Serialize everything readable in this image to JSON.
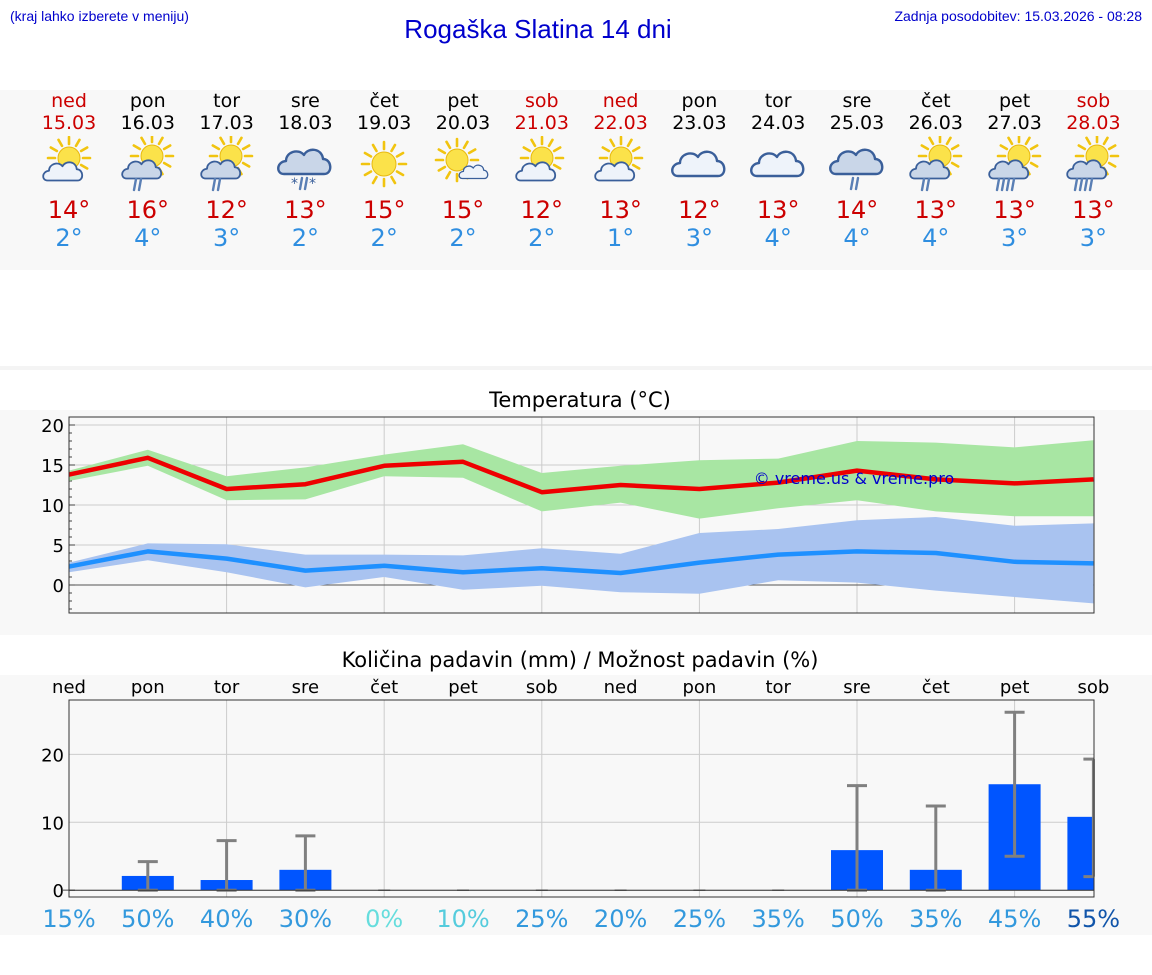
{
  "header": {
    "hint": "(kraj lahko izberete v meniju)",
    "title": "Rogaška Slatina 14 dni",
    "updated": "Zadnja posodobitev: 15.03.2026 - 08:28"
  },
  "days": [
    {
      "name": "ned",
      "date": "15.03",
      "weekend": true,
      "icon": "sun-cloud-icon",
      "tmax": "14°",
      "tmin": "2°"
    },
    {
      "name": "pon",
      "date": "16.03",
      "weekend": false,
      "icon": "sun-cloud-rain-icon",
      "tmax": "16°",
      "tmin": "4°"
    },
    {
      "name": "tor",
      "date": "17.03",
      "weekend": false,
      "icon": "sun-cloud-rain-icon",
      "tmax": "12°",
      "tmin": "3°"
    },
    {
      "name": "sre",
      "date": "18.03",
      "weekend": false,
      "icon": "cloud-rain-snow-icon",
      "tmax": "13°",
      "tmin": "2°"
    },
    {
      "name": "čet",
      "date": "19.03",
      "weekend": false,
      "icon": "sun-icon",
      "tmax": "15°",
      "tmin": "2°"
    },
    {
      "name": "pet",
      "date": "20.03",
      "weekend": false,
      "icon": "sun-small-cloud-icon",
      "tmax": "15°",
      "tmin": "2°"
    },
    {
      "name": "sob",
      "date": "21.03",
      "weekend": true,
      "icon": "sun-cloud-icon",
      "tmax": "12°",
      "tmin": "2°"
    },
    {
      "name": "ned",
      "date": "22.03",
      "weekend": true,
      "icon": "sun-cloud-icon",
      "tmax": "13°",
      "tmin": "1°"
    },
    {
      "name": "pon",
      "date": "23.03",
      "weekend": false,
      "icon": "cloud-icon",
      "tmax": "12°",
      "tmin": "3°"
    },
    {
      "name": "tor",
      "date": "24.03",
      "weekend": false,
      "icon": "cloud-icon",
      "tmax": "13°",
      "tmin": "4°"
    },
    {
      "name": "sre",
      "date": "25.03",
      "weekend": false,
      "icon": "cloud-rain-icon",
      "tmax": "14°",
      "tmin": "4°"
    },
    {
      "name": "čet",
      "date": "26.03",
      "weekend": false,
      "icon": "sun-cloud-rain-icon",
      "tmax": "13°",
      "tmin": "4°"
    },
    {
      "name": "pet",
      "date": "27.03",
      "weekend": false,
      "icon": "sun-cloud-heavy-rain-icon",
      "tmax": "13°",
      "tmin": "3°"
    },
    {
      "name": "sob",
      "date": "28.03",
      "weekend": true,
      "icon": "sun-cloud-heavy-rain-icon",
      "tmax": "13°",
      "tmin": "3°"
    }
  ],
  "colors": {
    "max_line": "#ee0000",
    "max_band": "#a8e6a3",
    "min_line": "#1e90ff",
    "min_band": "#a9c3f0",
    "rain_bar": "#0055ff",
    "error_bar": "#808080",
    "watermark": "#0000cc"
  },
  "chart_data": [
    {
      "type": "line",
      "title": "Temperatura (°C)",
      "watermark": "© vreme.us & vreme.pro",
      "ylim": [
        -3.5,
        21
      ],
      "yticks": [
        0,
        5,
        10,
        15,
        20
      ],
      "x": [
        0,
        1,
        2,
        3,
        4,
        5,
        6,
        7,
        8,
        9,
        10,
        11,
        12,
        13
      ],
      "series": [
        {
          "name": "max",
          "values": [
            13.8,
            15.9,
            12.0,
            12.6,
            14.9,
            15.4,
            11.6,
            12.5,
            12.0,
            12.8,
            14.3,
            13.2,
            12.7,
            13.2
          ],
          "band_low": [
            13.0,
            14.9,
            10.6,
            10.7,
            13.6,
            13.4,
            9.2,
            10.3,
            8.3,
            9.6,
            10.6,
            9.2,
            8.6,
            8.6
          ],
          "band_high": [
            14.3,
            16.9,
            13.6,
            14.7,
            16.3,
            17.6,
            14.0,
            14.9,
            15.6,
            15.8,
            18.0,
            17.8,
            17.2,
            18.1
          ]
        },
        {
          "name": "min",
          "values": [
            2.3,
            4.2,
            3.3,
            1.8,
            2.4,
            1.6,
            2.1,
            1.5,
            2.8,
            3.8,
            4.2,
            4.0,
            2.9,
            2.7
          ],
          "band_low": [
            1.6,
            3.1,
            1.6,
            -0.3,
            1.0,
            -0.6,
            -0.1,
            -0.9,
            -1.1,
            0.6,
            0.3,
            -0.7,
            -1.5,
            -2.3
          ],
          "band_high": [
            2.8,
            5.2,
            5.1,
            3.8,
            3.8,
            3.7,
            4.6,
            3.9,
            6.5,
            7.0,
            8.1,
            8.5,
            7.4,
            7.7
          ]
        }
      ]
    },
    {
      "type": "bar",
      "title": "Količina padavin (mm) / Možnost padavin (%)",
      "categories": [
        "ned",
        "pon",
        "tor",
        "sre",
        "čet",
        "pet",
        "sob",
        "ned",
        "pon",
        "tor",
        "sre",
        "čet",
        "pet",
        "sob"
      ],
      "values": [
        0,
        2.1,
        1.5,
        3.0,
        0,
        0,
        0,
        0,
        0,
        0,
        5.9,
        3.0,
        15.6,
        10.8
      ],
      "err_low": [
        0,
        0,
        0,
        0,
        0,
        0,
        0,
        0,
        0,
        0,
        0,
        0,
        5.0,
        2.0
      ],
      "err_high": [
        0,
        4.2,
        7.3,
        8.0,
        0,
        0,
        0,
        0,
        0,
        0,
        15.4,
        12.4,
        26.2,
        19.3
      ],
      "ylim": [
        -1,
        28
      ],
      "yticks": [
        0,
        10,
        20
      ],
      "probabilities": [
        "15%",
        "50%",
        "40%",
        "30%",
        "0%",
        "10%",
        "25%",
        "20%",
        "25%",
        "35%",
        "50%",
        "35%",
        "45%",
        "55%"
      ],
      "prob_colors": [
        "#3399dd",
        "#3399dd",
        "#3399dd",
        "#3399dd",
        "#66dddd",
        "#55ccdd",
        "#3399dd",
        "#3399dd",
        "#3399dd",
        "#3399dd",
        "#3399dd",
        "#3399dd",
        "#3399dd",
        "#1155aa"
      ]
    }
  ]
}
